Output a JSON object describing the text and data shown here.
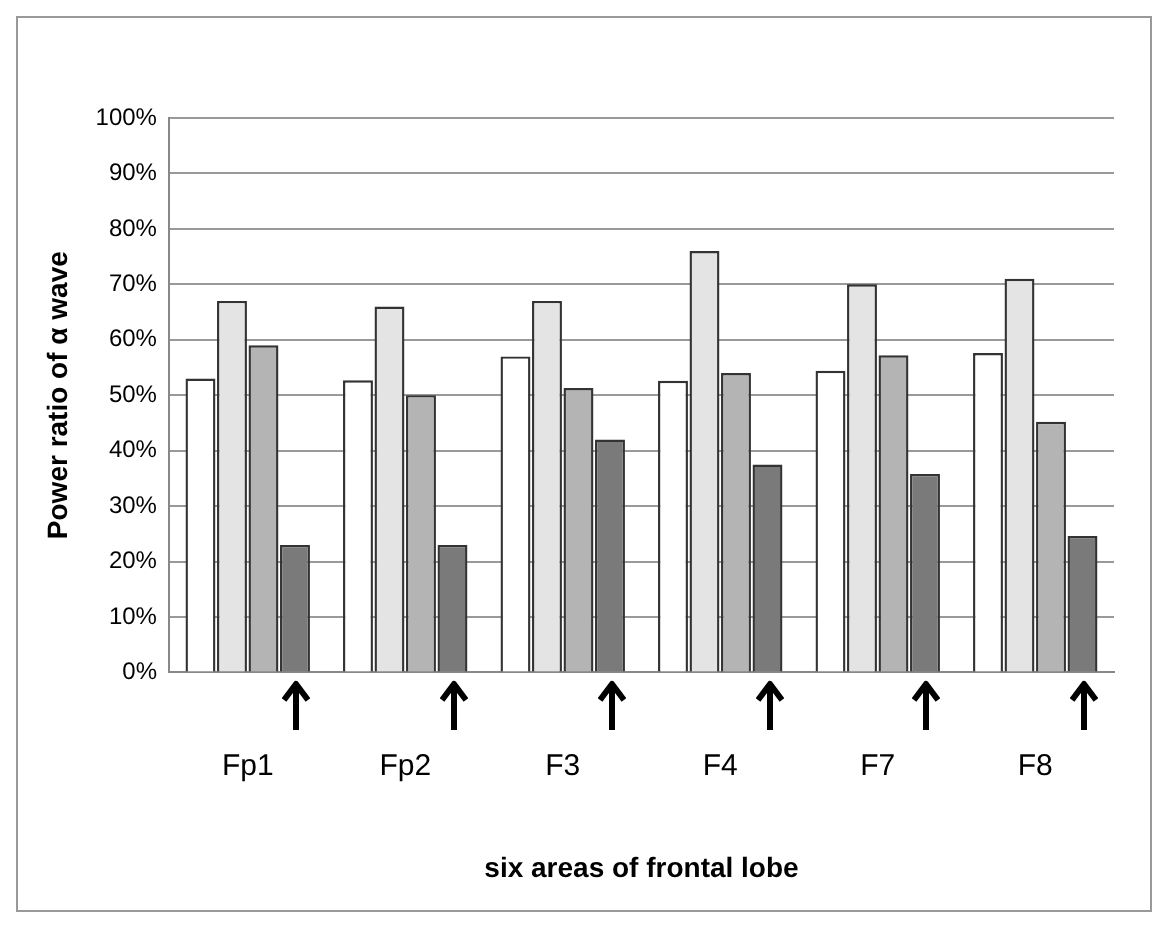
{
  "chart_data": {
    "type": "bar",
    "xlabel": "six areas of frontal lobe",
    "ylabel": "Power ratio of α wave",
    "categories": [
      "Fp1",
      "Fp2",
      "F3",
      "F4",
      "F7",
      "F8"
    ],
    "series": [
      {
        "color": "#ffffff",
        "values": [
          53,
          52.7,
          57,
          52.6,
          54.4,
          57.6
        ]
      },
      {
        "color": "#e4e4e4",
        "values": [
          67,
          66,
          67,
          76,
          70,
          71
        ]
      },
      {
        "color": "#b4b4b4",
        "values": [
          59,
          50,
          51.3,
          54,
          57.2,
          45.2
        ]
      },
      {
        "color": "#7a7a7a",
        "values": [
          23,
          23,
          42,
          37.5,
          35.8,
          24.6
        ]
      }
    ],
    "ylim": [
      0,
      100
    ],
    "yticks": [
      {
        "value": 0,
        "label": "0%"
      },
      {
        "value": 10,
        "label": "10%"
      },
      {
        "value": 20,
        "label": "20%"
      },
      {
        "value": 30,
        "label": "30%"
      },
      {
        "value": 40,
        "label": "40%"
      },
      {
        "value": 50,
        "label": "50%"
      },
      {
        "value": 60,
        "label": "60%"
      },
      {
        "value": 70,
        "label": "70%"
      },
      {
        "value": 80,
        "label": "80%"
      },
      {
        "value": 90,
        "label": "90%"
      },
      {
        "value": 100,
        "label": "100%"
      }
    ],
    "grid": "y",
    "legend": false
  }
}
